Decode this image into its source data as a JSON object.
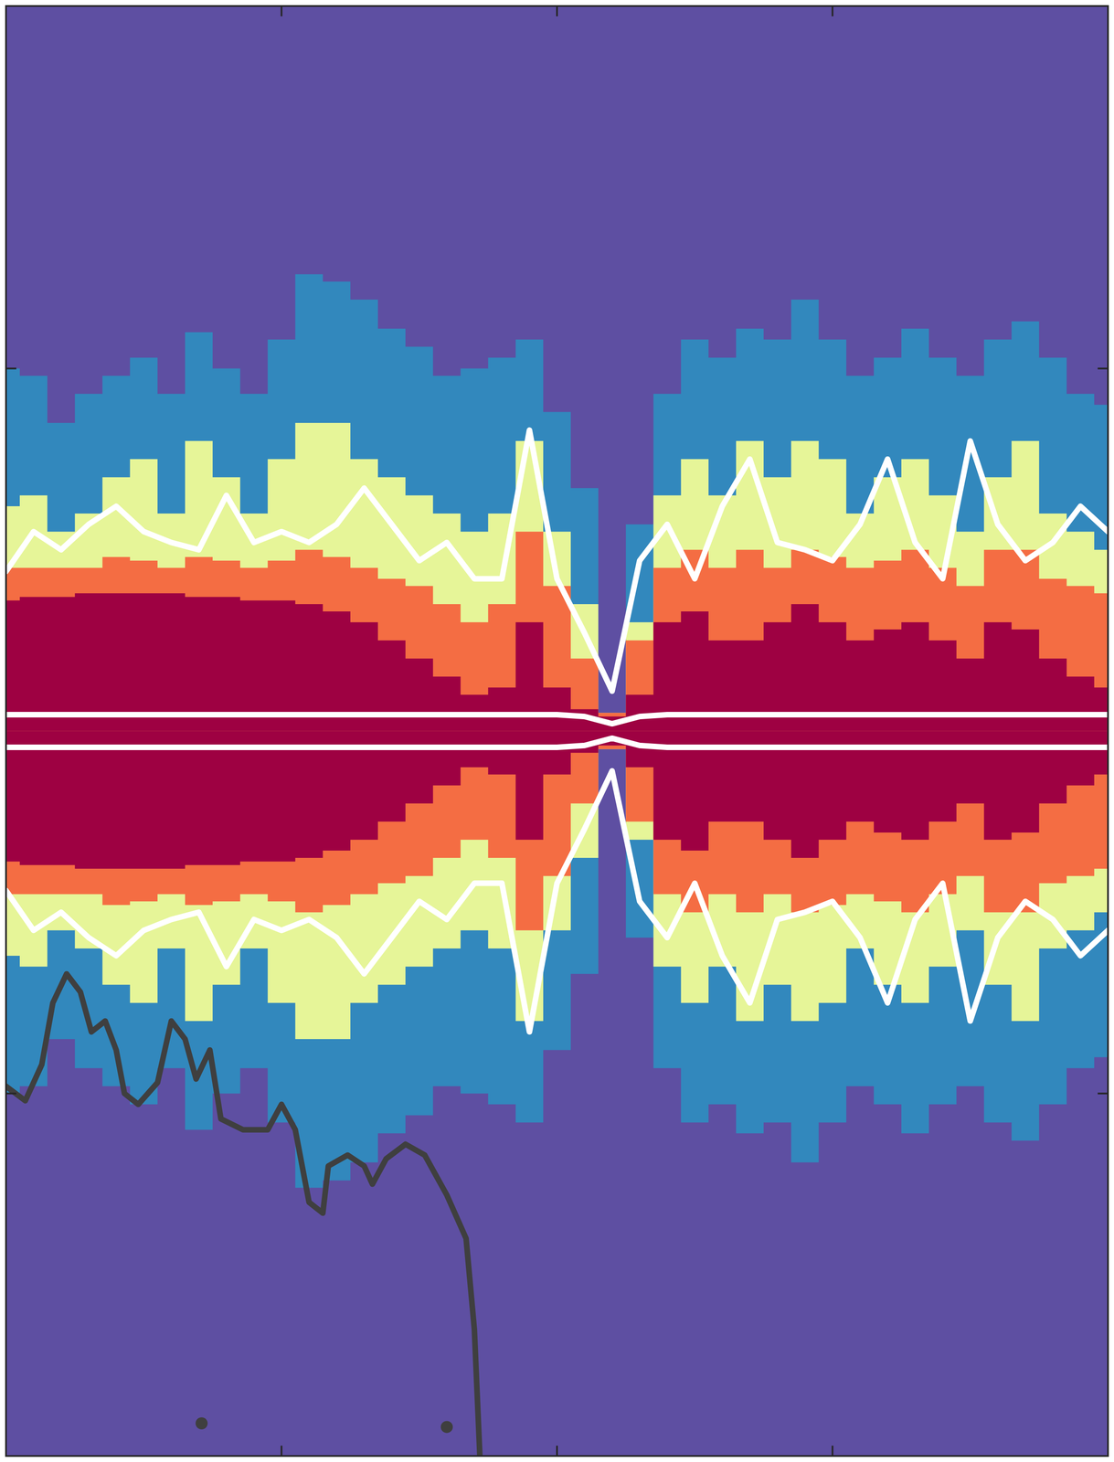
{
  "chart_data": {
    "type": "heatmap_contour",
    "color": "#5e4fa2",
    "tick_labels": false,
    "grid": false,
    "xlim": [
      0,
      4
    ],
    "xticks": [
      1,
      2,
      3
    ],
    "ylim": [
      -2,
      2
    ],
    "yticks": [
      -1,
      1
    ],
    "x": [
      0,
      0.1,
      0.2,
      0.3,
      0.4,
      0.5,
      0.6,
      0.7,
      0.8,
      0.9,
      1.0,
      1.1,
      1.2,
      1.3,
      1.4,
      1.5,
      1.6,
      1.7,
      1.8,
      1.9,
      2.0,
      2.1,
      2.2,
      2.3,
      2.4,
      2.5,
      2.6,
      2.7,
      2.8,
      2.9,
      3.0,
      3.1,
      3.2,
      3.3,
      3.4,
      3.5,
      3.6,
      3.7,
      3.8,
      3.9,
      4.0
    ],
    "series": [
      {
        "type": "area",
        "color": "#3288bd",
        "values": [
          1.0,
          0.98,
          0.85,
          0.93,
          0.98,
          1.03,
          0.93,
          1.1,
          1.0,
          0.93,
          1.08,
          1.26,
          1.24,
          1.19,
          1.11,
          1.06,
          0.98,
          1.0,
          1.03,
          1.08,
          0.88,
          0.67,
          0.05,
          0.57,
          0.93,
          1.08,
          1.03,
          1.11,
          1.08,
          1.19,
          1.08,
          0.98,
          1.03,
          1.11,
          1.03,
          0.98,
          1.08,
          1.13,
          1.03,
          0.93,
          0.9
        ]
      },
      {
        "type": "area",
        "color": "#3288bd",
        "values": [
          -1.0,
          -0.98,
          -0.85,
          -0.93,
          -0.98,
          -1.03,
          -0.93,
          -1.1,
          -1.0,
          -0.93,
          -1.08,
          -1.26,
          -1.24,
          -1.19,
          -1.11,
          -1.06,
          -0.98,
          -1.0,
          -1.03,
          -1.08,
          -0.88,
          -0.67,
          -0.05,
          -0.57,
          -0.93,
          -1.08,
          -1.03,
          -1.11,
          -1.08,
          -1.19,
          -1.08,
          -0.98,
          -1.03,
          -1.11,
          -1.03,
          -0.98,
          -1.08,
          -1.13,
          -1.03,
          -0.93,
          -0.9
        ]
      },
      {
        "type": "area",
        "color": "#e6f598",
        "values": [
          0.62,
          0.65,
          0.55,
          0.6,
          0.7,
          0.75,
          0.6,
          0.8,
          0.7,
          0.6,
          0.75,
          0.85,
          0.85,
          0.75,
          0.7,
          0.65,
          0.6,
          0.55,
          0.6,
          0.8,
          0.55,
          0.35,
          0.05,
          0.3,
          0.65,
          0.75,
          0.65,
          0.8,
          0.7,
          0.8,
          0.75,
          0.6,
          0.7,
          0.75,
          0.65,
          0.55,
          0.7,
          0.8,
          0.6,
          0.55,
          0.5
        ]
      },
      {
        "type": "area",
        "color": "#e6f598",
        "values": [
          -0.62,
          -0.65,
          -0.55,
          -0.6,
          -0.7,
          -0.75,
          -0.6,
          -0.8,
          -0.7,
          -0.6,
          -0.75,
          -0.85,
          -0.85,
          -0.75,
          -0.7,
          -0.65,
          -0.6,
          -0.55,
          -0.6,
          -0.8,
          -0.55,
          -0.35,
          -0.05,
          -0.3,
          -0.65,
          -0.75,
          -0.65,
          -0.8,
          -0.7,
          -0.8,
          -0.75,
          -0.6,
          -0.7,
          -0.75,
          -0.65,
          -0.55,
          -0.7,
          -0.8,
          -0.6,
          -0.55,
          -0.5
        ]
      },
      {
        "type": "area",
        "color": "#f46d43",
        "values": [
          0.45,
          0.45,
          0.45,
          0.45,
          0.48,
          0.47,
          0.45,
          0.48,
          0.47,
          0.45,
          0.47,
          0.5,
          0.48,
          0.45,
          0.42,
          0.4,
          0.35,
          0.3,
          0.35,
          0.55,
          0.4,
          0.2,
          0.05,
          0.25,
          0.45,
          0.5,
          0.45,
          0.5,
          0.45,
          0.5,
          0.48,
          0.45,
          0.47,
          0.5,
          0.45,
          0.4,
          0.5,
          0.5,
          0.42,
          0.4,
          0.38
        ]
      },
      {
        "type": "area",
        "color": "#f46d43",
        "values": [
          -0.45,
          -0.45,
          -0.45,
          -0.45,
          -0.48,
          -0.47,
          -0.45,
          -0.48,
          -0.47,
          -0.45,
          -0.47,
          -0.5,
          -0.48,
          -0.45,
          -0.42,
          -0.4,
          -0.35,
          -0.3,
          -0.35,
          -0.55,
          -0.4,
          -0.2,
          -0.05,
          -0.25,
          -0.45,
          -0.5,
          -0.45,
          -0.5,
          -0.45,
          -0.5,
          -0.48,
          -0.45,
          -0.47,
          -0.5,
          -0.45,
          -0.4,
          -0.5,
          -0.5,
          -0.42,
          -0.4,
          -0.38
        ]
      },
      {
        "type": "area",
        "color": "#9e0142",
        "values": [
          0.36,
          0.37,
          0.37,
          0.38,
          0.38,
          0.38,
          0.38,
          0.37,
          0.37,
          0.36,
          0.36,
          0.35,
          0.33,
          0.3,
          0.25,
          0.2,
          0.15,
          0.1,
          0.12,
          0.3,
          0.12,
          0.06,
          0.04,
          0.1,
          0.3,
          0.33,
          0.25,
          0.25,
          0.3,
          0.35,
          0.3,
          0.25,
          0.28,
          0.3,
          0.25,
          0.2,
          0.3,
          0.28,
          0.2,
          0.15,
          0.12
        ]
      },
      {
        "type": "area",
        "color": "#9e0142",
        "values": [
          -0.36,
          -0.37,
          -0.37,
          -0.38,
          -0.38,
          -0.38,
          -0.38,
          -0.37,
          -0.37,
          -0.36,
          -0.36,
          -0.35,
          -0.33,
          -0.3,
          -0.25,
          -0.2,
          -0.15,
          -0.1,
          -0.12,
          -0.3,
          -0.12,
          -0.06,
          -0.04,
          -0.1,
          -0.3,
          -0.33,
          -0.25,
          -0.25,
          -0.3,
          -0.35,
          -0.3,
          -0.25,
          -0.28,
          -0.3,
          -0.25,
          -0.2,
          -0.3,
          -0.28,
          -0.2,
          -0.15,
          -0.12
        ]
      },
      {
        "type": "line",
        "color": "#ffffff",
        "values": [
          0.44,
          0.55,
          0.5,
          0.57,
          0.62,
          0.55,
          0.52,
          0.5,
          0.65,
          0.52,
          0.55,
          0.52,
          0.57,
          0.67,
          0.57,
          0.47,
          0.52,
          0.42,
          0.42,
          0.83,
          0.42,
          0.27,
          0.11,
          0.47,
          0.57,
          0.42,
          0.62,
          0.75,
          0.52,
          0.5,
          0.47,
          0.57,
          0.75,
          0.52,
          0.42,
          0.8,
          0.57,
          0.47,
          0.52,
          0.62,
          0.55
        ]
      },
      {
        "type": "line",
        "color": "#ffffff",
        "values": [
          -0.44,
          -0.55,
          -0.5,
          -0.57,
          -0.62,
          -0.55,
          -0.52,
          -0.5,
          -0.65,
          -0.52,
          -0.55,
          -0.52,
          -0.57,
          -0.67,
          -0.57,
          -0.47,
          -0.52,
          -0.42,
          -0.42,
          -0.83,
          -0.42,
          -0.27,
          -0.11,
          -0.47,
          -0.57,
          -0.42,
          -0.62,
          -0.75,
          -0.52,
          -0.5,
          -0.47,
          -0.57,
          -0.75,
          -0.52,
          -0.42,
          -0.8,
          -0.57,
          -0.47,
          -0.52,
          -0.62,
          -0.55
        ]
      },
      {
        "type": "line",
        "color": "#ffffff",
        "values": [
          0.045,
          0.045,
          0.045,
          0.045,
          0.045,
          0.045,
          0.045,
          0.045,
          0.045,
          0.045,
          0.045,
          0.045,
          0.045,
          0.045,
          0.045,
          0.045,
          0.045,
          0.045,
          0.045,
          0.045,
          0.045,
          0.04,
          0.02,
          0.04,
          0.045,
          0.045,
          0.045,
          0.045,
          0.045,
          0.045,
          0.045,
          0.045,
          0.045,
          0.045,
          0.045,
          0.045,
          0.045,
          0.045,
          0.045,
          0.045,
          0.045
        ]
      },
      {
        "type": "line",
        "color": "#ffffff",
        "values": [
          -0.045,
          -0.045,
          -0.045,
          -0.045,
          -0.045,
          -0.045,
          -0.045,
          -0.045,
          -0.045,
          -0.045,
          -0.045,
          -0.045,
          -0.045,
          -0.045,
          -0.045,
          -0.045,
          -0.045,
          -0.045,
          -0.045,
          -0.045,
          -0.045,
          -0.04,
          -0.02,
          -0.04,
          -0.045,
          -0.045,
          -0.045,
          -0.045,
          -0.045,
          -0.045,
          -0.045,
          -0.045,
          -0.045,
          -0.045,
          -0.045,
          -0.045,
          -0.045,
          -0.045,
          -0.045,
          -0.045,
          -0.045
        ]
      },
      {
        "type": "line",
        "color": "#3f3f3f",
        "x": [
          0,
          0.07,
          0.13,
          0.17,
          0.22,
          0.27,
          0.31,
          0.36,
          0.4,
          0.43,
          0.48,
          0.55,
          0.6,
          0.65,
          0.69,
          0.74,
          0.78,
          0.86,
          0.95,
          1.0,
          1.05,
          1.1,
          1.15,
          1.17,
          1.24,
          1.3,
          1.33,
          1.38,
          1.45,
          1.52,
          1.6,
          1.67,
          1.7,
          1.72
        ],
        "values": [
          -0.98,
          -1.02,
          -0.92,
          -0.75,
          -0.67,
          -0.72,
          -0.83,
          -0.8,
          -0.88,
          -1.0,
          -1.03,
          -0.97,
          -0.8,
          -0.85,
          -0.96,
          -0.88,
          -1.07,
          -1.1,
          -1.1,
          -1.03,
          -1.1,
          -1.3,
          -1.33,
          -1.2,
          -1.17,
          -1.2,
          -1.25,
          -1.18,
          -1.14,
          -1.17,
          -1.28,
          -1.4,
          -1.65,
          -2.0
        ]
      },
      {
        "type": "scatter",
        "color": "#3f3f3f",
        "marker": "circle",
        "x": [
          0.71,
          1.6
        ],
        "values": [
          -1.91,
          -1.92
        ]
      }
    ]
  }
}
